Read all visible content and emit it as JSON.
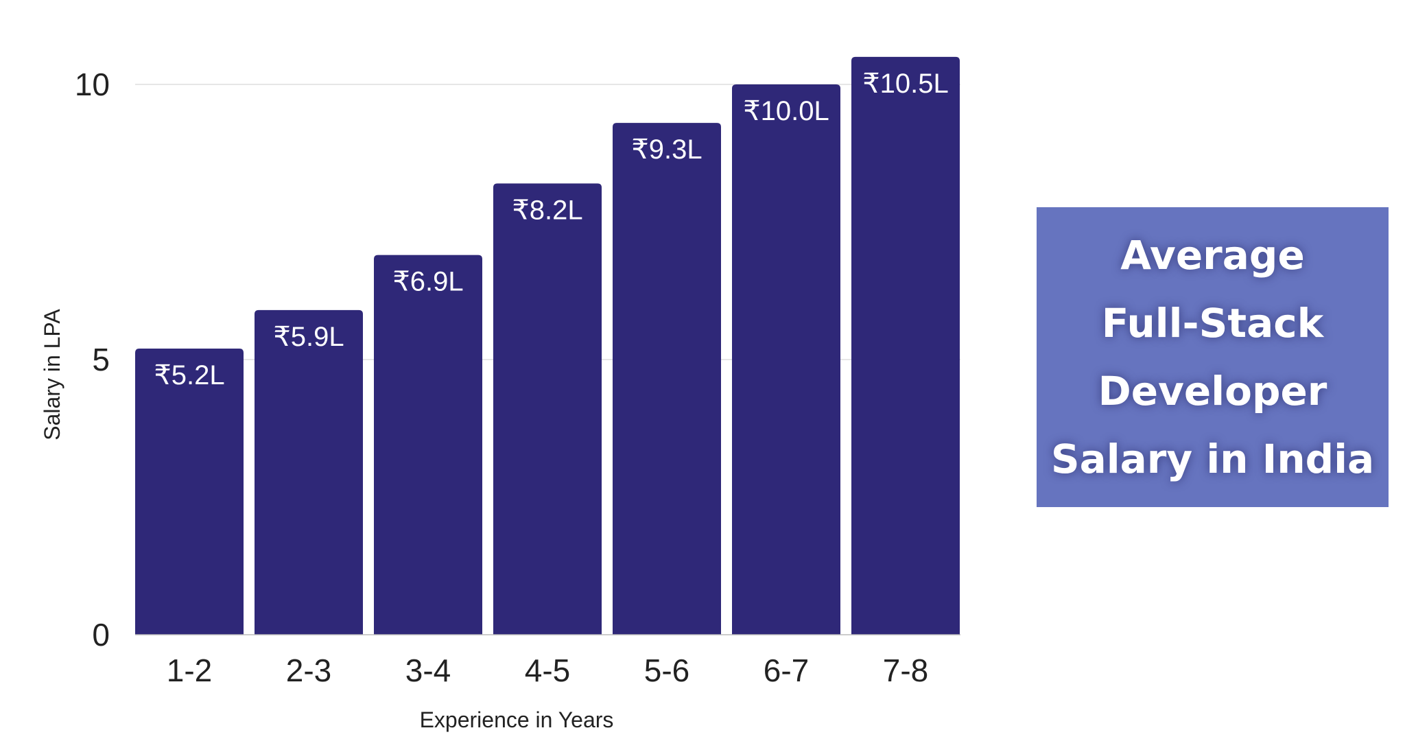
{
  "chart_data": {
    "type": "bar",
    "title": "Average Full-Stack Developer Salary in India",
    "title_lines": [
      "Average",
      "Full-Stack",
      "Developer",
      "Salary in India"
    ],
    "xlabel": "Experience in Years",
    "ylabel": "Salary in LPA",
    "categories": [
      "1-2",
      "2-3",
      "3-4",
      "4-5",
      "5-6",
      "6-7",
      "7-8"
    ],
    "values": [
      5.2,
      5.9,
      6.9,
      8.2,
      9.3,
      10.0,
      10.5
    ],
    "data_labels": [
      "₹5.2L",
      "₹5.9L",
      "₹6.9L",
      "₹8.2L",
      "₹9.3L",
      "₹10.0L",
      "₹10.5L"
    ],
    "yticks": [
      0,
      5,
      10
    ],
    "ylim": [
      0,
      10.5
    ],
    "grid": true,
    "legend": "none",
    "colors": {
      "bar": "#2f2878",
      "title_box": "#6674bf",
      "grid": "#dddddd"
    }
  }
}
